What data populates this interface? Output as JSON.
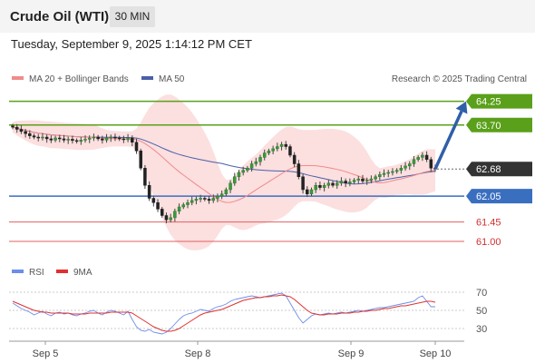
{
  "header": {
    "instrument": "Crude Oil (WTI)",
    "timeframe": "30 MIN"
  },
  "timestamp": "Tuesday, September 9, 2025 1:14:12 PM CET",
  "credit": "Research © 2025 Trading Central",
  "colors": {
    "resistance": "#5aa01a",
    "pivot": "#3a6fc0",
    "support": "#e06060",
    "price": "#333333",
    "arrow": "#2f5fa8",
    "ma20": "#f08b8b",
    "ma50": "#4a5fa8",
    "band": "#fcd9d9",
    "rsi": "#6b8ee8",
    "rsi9ma": "#e03030"
  },
  "chart_data": [
    {
      "type": "candlestick",
      "legend": [
        {
          "label": "MA 20 + Bollinger Bands",
          "color": "#f08b8b"
        },
        {
          "label": "MA 50",
          "color": "#4a5fa8"
        }
      ],
      "legend_position": "top-left",
      "ylim": [
        60.6,
        64.6
      ],
      "x_ticks": [
        "Sep 5",
        "Sep 8",
        "Sep 9",
        "Sep 10"
      ],
      "levels": [
        {
          "value": 64.25,
          "label": "64.25",
          "kind": "resistance"
        },
        {
          "value": 63.7,
          "label": "63.70",
          "kind": "resistance"
        },
        {
          "value": 62.68,
          "label": "62.68",
          "kind": "price"
        },
        {
          "value": 62.05,
          "label": "62.05",
          "kind": "pivot"
        },
        {
          "value": 61.45,
          "label": "61.45",
          "kind": "support"
        },
        {
          "value": 61.0,
          "label": "61.00",
          "kind": "support"
        }
      ],
      "close": [
        63.65,
        63.6,
        63.55,
        63.5,
        63.45,
        63.42,
        63.4,
        63.42,
        63.38,
        63.35,
        63.4,
        63.38,
        63.35,
        63.37,
        63.34,
        63.32,
        63.35,
        63.37,
        63.4,
        63.42,
        63.38,
        63.35,
        63.4,
        63.42,
        63.4,
        63.38,
        63.36,
        63.4,
        63.3,
        63.1,
        62.7,
        62.3,
        62.0,
        61.9,
        61.75,
        61.6,
        61.5,
        61.55,
        61.7,
        61.8,
        61.85,
        61.9,
        61.95,
        61.98,
        62.0,
        61.98,
        61.95,
        62.0,
        62.05,
        62.1,
        62.2,
        62.35,
        62.5,
        62.6,
        62.65,
        62.7,
        62.8,
        62.85,
        62.95,
        63.05,
        63.1,
        63.15,
        63.2,
        63.25,
        63.2,
        63.0,
        62.8,
        62.5,
        62.2,
        62.1,
        62.2,
        62.3,
        62.25,
        62.3,
        62.35,
        62.3,
        62.35,
        62.4,
        62.35,
        62.38,
        62.42,
        62.45,
        62.4,
        62.42,
        62.45,
        62.5,
        62.55,
        62.58,
        62.6,
        62.62,
        62.65,
        62.7,
        62.75,
        62.8,
        62.9,
        62.95,
        63.0,
        62.9,
        62.7,
        62.68
      ],
      "rsi": {
        "legend": [
          {
            "label": "RSI",
            "color": "#6b8ee8"
          },
          {
            "label": "9MA",
            "color": "#e03030"
          }
        ],
        "ylim": [
          20,
          80
        ],
        "ticks": [
          70,
          50,
          30
        ],
        "values": [
          58,
          55,
          52,
          50,
          48,
          45,
          47,
          49,
          46,
          44,
          47,
          48,
          46,
          47,
          45,
          44,
          46,
          47,
          49,
          50,
          47,
          45,
          48,
          50,
          49,
          47,
          45,
          49,
          40,
          32,
          28,
          27,
          29,
          26,
          25,
          24,
          26,
          30,
          35,
          40,
          44,
          46,
          47,
          49,
          51,
          50,
          49,
          52,
          54,
          55,
          57,
          60,
          62,
          63,
          64,
          65,
          66,
          65,
          64,
          65,
          66,
          67,
          68,
          69,
          66,
          58,
          50,
          42,
          36,
          40,
          44,
          46,
          45,
          46,
          47,
          46,
          47,
          48,
          47,
          48,
          49,
          50,
          49,
          50,
          51,
          52,
          53,
          53,
          54,
          55,
          56,
          57,
          58,
          59,
          60,
          64,
          66,
          60,
          54,
          54
        ],
        "ma9": [
          60,
          58,
          56,
          54,
          52,
          50,
          49,
          48,
          48,
          47,
          47,
          47,
          47,
          47,
          46,
          46,
          46,
          46,
          47,
          47,
          47,
          47,
          47,
          48,
          48,
          48,
          48,
          48,
          47,
          44,
          41,
          38,
          35,
          32,
          30,
          28,
          27,
          27,
          28,
          30,
          33,
          36,
          39,
          42,
          45,
          47,
          48,
          49,
          50,
          51,
          53,
          55,
          57,
          59,
          61,
          62,
          63,
          64,
          64,
          65,
          65,
          66,
          66,
          67,
          66,
          65,
          62,
          58,
          54,
          50,
          47,
          46,
          45,
          45,
          46,
          46,
          46,
          47,
          47,
          47,
          48,
          48,
          49,
          49,
          50,
          50,
          51,
          52,
          52,
          53,
          54,
          55,
          55,
          56,
          57,
          58,
          59,
          60,
          60,
          59
        ]
      }
    }
  ]
}
